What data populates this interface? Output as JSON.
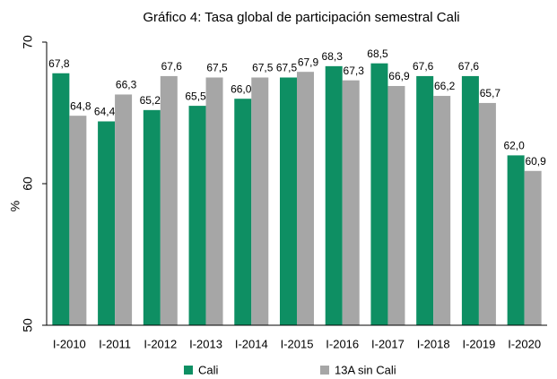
{
  "chart_data": {
    "type": "bar",
    "title": "Gráfico 4: Tasa global de participación semestral Cali",
    "y_label": "%",
    "categories": [
      "I-2010",
      "I-2011",
      "I-2012",
      "I-2013",
      "I-2014",
      "I-2015",
      "I-2016",
      "I-2017",
      "I-2018",
      "I-2019",
      "I-2020"
    ],
    "series": [
      {
        "name": "Cali",
        "color": "#0e8f63",
        "values": [
          67.8,
          64.4,
          65.2,
          65.5,
          66.0,
          67.5,
          68.3,
          68.5,
          67.6,
          67.6,
          62.0
        ],
        "value_labels": [
          "67,8",
          "64,4",
          "65,2",
          "65,5",
          "66,0",
          "67,5",
          "68,3",
          "68,5",
          "67,6",
          "67,6",
          "62,0"
        ]
      },
      {
        "name": "13A sin Cali",
        "color": "#a6a6a6",
        "values": [
          64.8,
          66.3,
          67.6,
          67.5,
          67.5,
          67.9,
          67.3,
          66.9,
          66.2,
          65.7,
          60.9
        ],
        "value_labels": [
          "64,8",
          "66,3",
          "67,6",
          "67,5",
          "67,5",
          "67,9",
          "67,3",
          "66,9",
          "66,2",
          "65,7",
          "60,9"
        ]
      }
    ],
    "ylim": [
      50,
      70
    ],
    "yticks": [
      50,
      60,
      70
    ],
    "grid": false,
    "legend": "bottom"
  }
}
